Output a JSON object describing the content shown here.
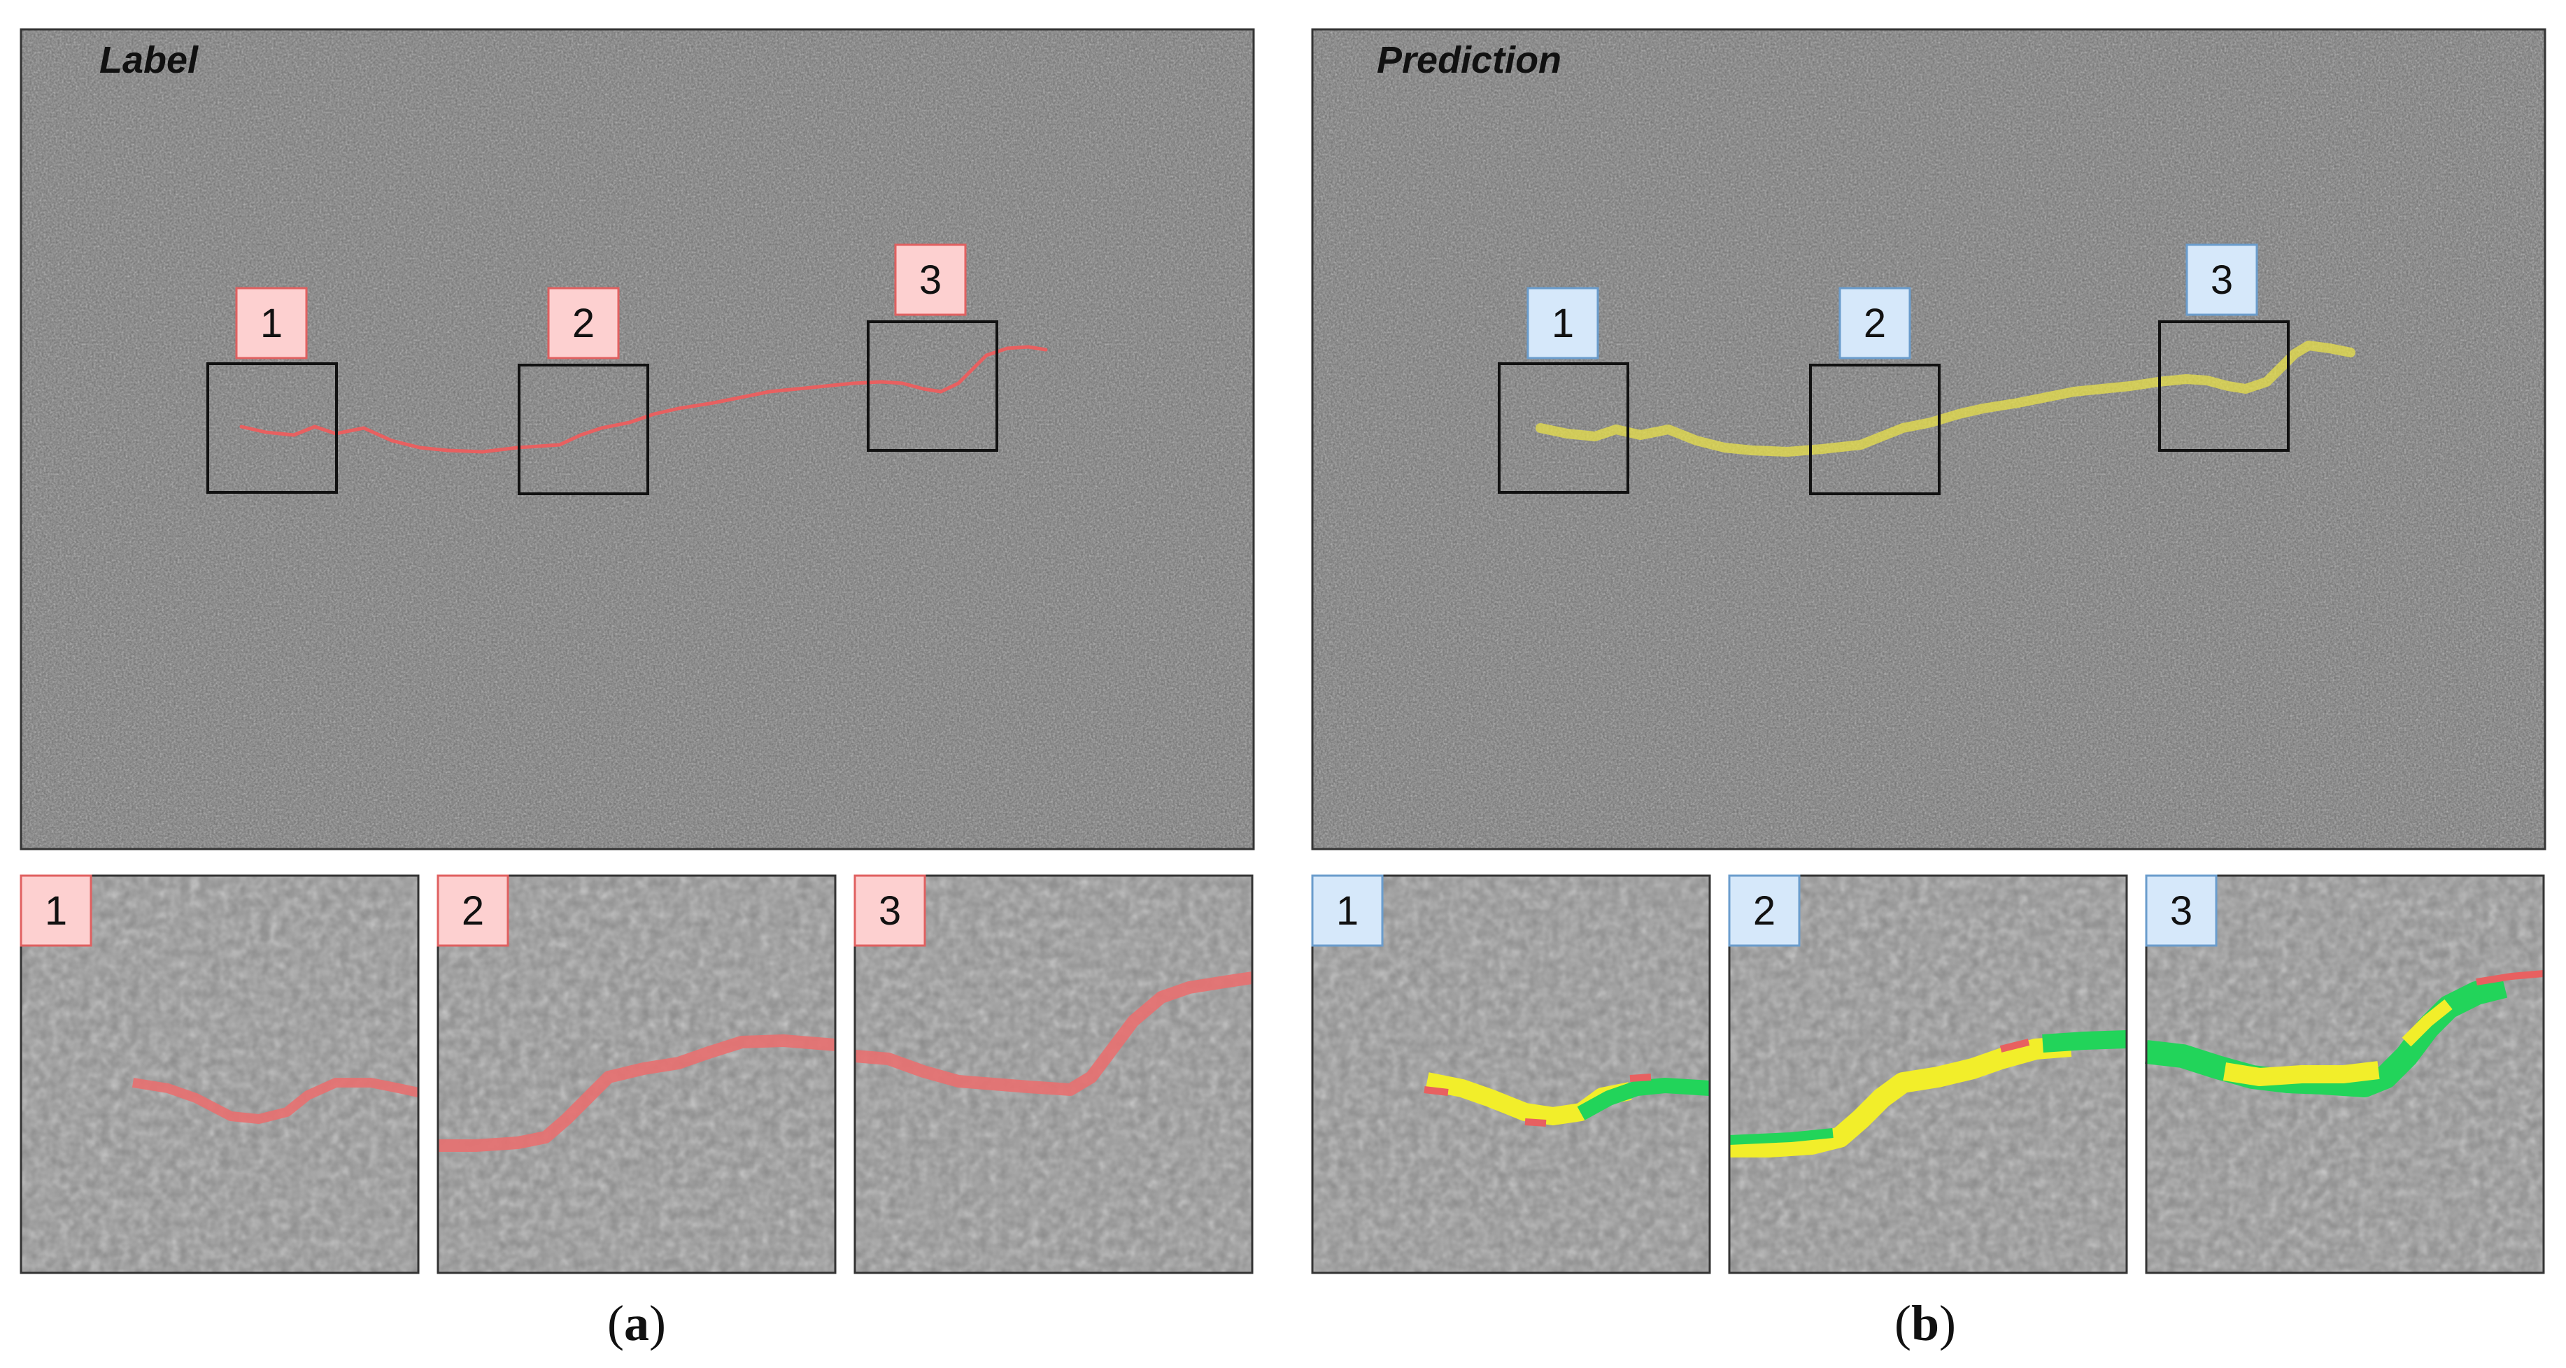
{
  "panels": [
    {
      "title": "Label",
      "caption_letter": "a",
      "badge_fill": "#fdd0d0",
      "badge_stroke": "#e06060",
      "overlay_color": "#e86060",
      "regions": [
        {
          "badge": "1"
        },
        {
          "badge": "2"
        },
        {
          "badge": "3"
        }
      ],
      "zooms": [
        {
          "badge": "1"
        },
        {
          "badge": "2"
        },
        {
          "badge": "3"
        }
      ]
    },
    {
      "title": "Prediction",
      "caption_letter": "b",
      "badge_fill": "#d6e8fa",
      "badge_stroke": "#6a9ccc",
      "overlay_color": "#e8e04a",
      "regions": [
        {
          "badge": "1"
        },
        {
          "badge": "2"
        },
        {
          "badge": "3"
        }
      ],
      "zooms": [
        {
          "badge": "1"
        },
        {
          "badge": "2"
        },
        {
          "badge": "3"
        }
      ]
    }
  ],
  "zoom_overlay_colors": {
    "true_positive": "#f2ee2a",
    "false_negative": "#e86060",
    "false_positive": "#22d45a"
  }
}
